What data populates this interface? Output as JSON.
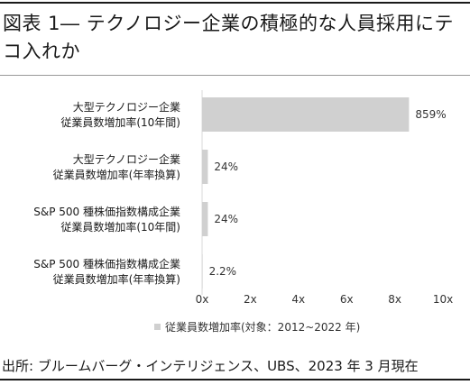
{
  "title": "図表 1― テクノロジー企業の積極的な人員採用にテコ入れか",
  "source": "出所: ブルームバーグ・インテリジェンス、UBS、2023 年 3 月現在",
  "chart_data": {
    "type": "bar",
    "orientation": "horizontal",
    "categories": [
      [
        "大型テクノロジー企業",
        "従業員数増加率(10年間)"
      ],
      [
        "大型テクノロジー企業",
        "従業員数増加率(年率換算)"
      ],
      [
        "S&P 500 種株価指数構成企業",
        "従業員数増加率(10年間)"
      ],
      [
        "S&P 500 種株価指数構成企業",
        "従業員数増加率(年率換算)"
      ]
    ],
    "series": [
      {
        "name": "従業員数増加率(対象：2012~2022 年)",
        "values": [
          8.59,
          0.24,
          0.24,
          0.022
        ],
        "data_labels": [
          "859%",
          "24%",
          "24%",
          "2.2%"
        ],
        "color": "#d0d0d0"
      }
    ],
    "xlim": [
      0,
      10
    ],
    "xticks": [
      "0x",
      "2x",
      "4x",
      "6x",
      "8x",
      "10x"
    ],
    "grid": false,
    "legend": "bottom"
  }
}
